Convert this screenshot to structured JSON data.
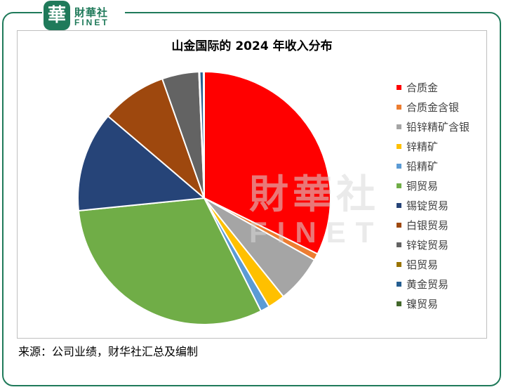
{
  "brand": {
    "badge": "華",
    "name_cn": "財華社",
    "name_en": "FINET"
  },
  "watermark": {
    "cn": "財華社",
    "en": "FINET"
  },
  "source_note": "来源：公司业绩，财华社汇总及编制",
  "chart_data": {
    "type": "pie",
    "title": "山金国际的 2024 年收入分布",
    "legend_position": "right",
    "start_angle_deg": 0,
    "direction": "clockwise",
    "slices": [
      {
        "label": "合质金",
        "value": 33.5,
        "color": "#ff0000"
      },
      {
        "label": "合质金含银",
        "value": 0.9,
        "color": "#ed7d31"
      },
      {
        "label": "铅锌精矿含银",
        "value": 6.3,
        "color": "#a5a5a5"
      },
      {
        "label": "锌精矿",
        "value": 2.3,
        "color": "#ffc000"
      },
      {
        "label": "铅精矿",
        "value": 1.2,
        "color": "#5b9bd5"
      },
      {
        "label": "铜贸易",
        "value": 32.0,
        "color": "#70ad47"
      },
      {
        "label": "锡锭贸易",
        "value": 13.3,
        "color": "#264478"
      },
      {
        "label": "白银贸易",
        "value": 8.7,
        "color": "#9e480e"
      },
      {
        "label": "锌锭贸易",
        "value": 4.9,
        "color": "#636363"
      },
      {
        "label": "铝贸易",
        "value": 0.1,
        "color": "#997300"
      },
      {
        "label": "黄金贸易",
        "value": 0.5,
        "color": "#255e91"
      },
      {
        "label": "镍贸易",
        "value": 0.1,
        "color": "#43682b"
      }
    ]
  }
}
